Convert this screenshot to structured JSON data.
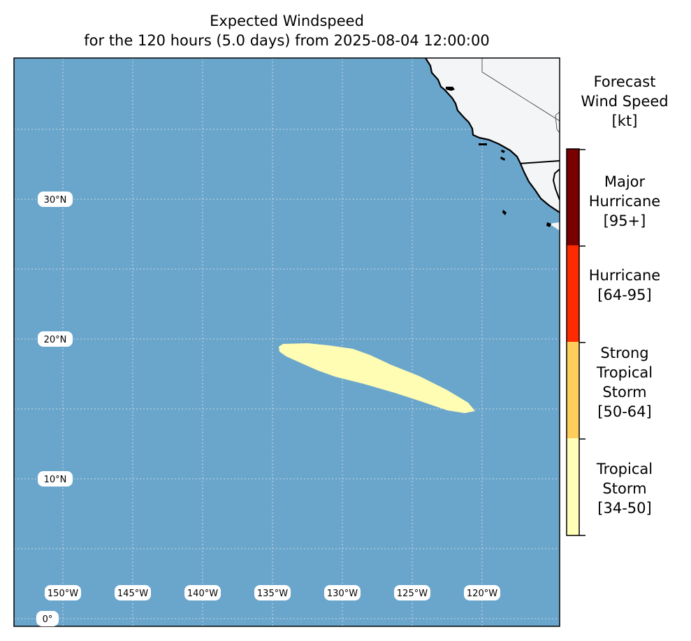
{
  "title": {
    "line1": "Expected Windspeed",
    "line2": "for the 120 hours (5.0 days) from 2025-08-04 12:00:00"
  },
  "map": {
    "ocean_color": "#6aa6cc",
    "land_color": "#f4f5f7",
    "gridline_color": "#c9d6e0",
    "lon_labels": [
      "150°W",
      "145°W",
      "140°W",
      "135°W",
      "130°W",
      "125°W",
      "120°W"
    ],
    "lat_labels": [
      "30°N",
      "20°N",
      "10°N",
      "0°"
    ],
    "swath_color": "#fffcb3",
    "swath_category": "Tropical Storm [34-50]"
  },
  "legend": {
    "title_lines": [
      "Forecast",
      "Wind Speed",
      "[kt]"
    ],
    "categories": [
      {
        "lines": [
          "Major",
          "Hurricane",
          "[95+]"
        ],
        "color": "#7a0000"
      },
      {
        "lines": [
          "Hurricane",
          "[64-95]"
        ],
        "color": "#ff2a00"
      },
      {
        "lines": [
          "Strong",
          "Tropical",
          "Storm",
          "[50-64]"
        ],
        "color": "#ffcd5c"
      },
      {
        "lines": [
          "Tropical",
          "Storm",
          "[34-50]"
        ],
        "color": "#ffffb7"
      }
    ]
  }
}
